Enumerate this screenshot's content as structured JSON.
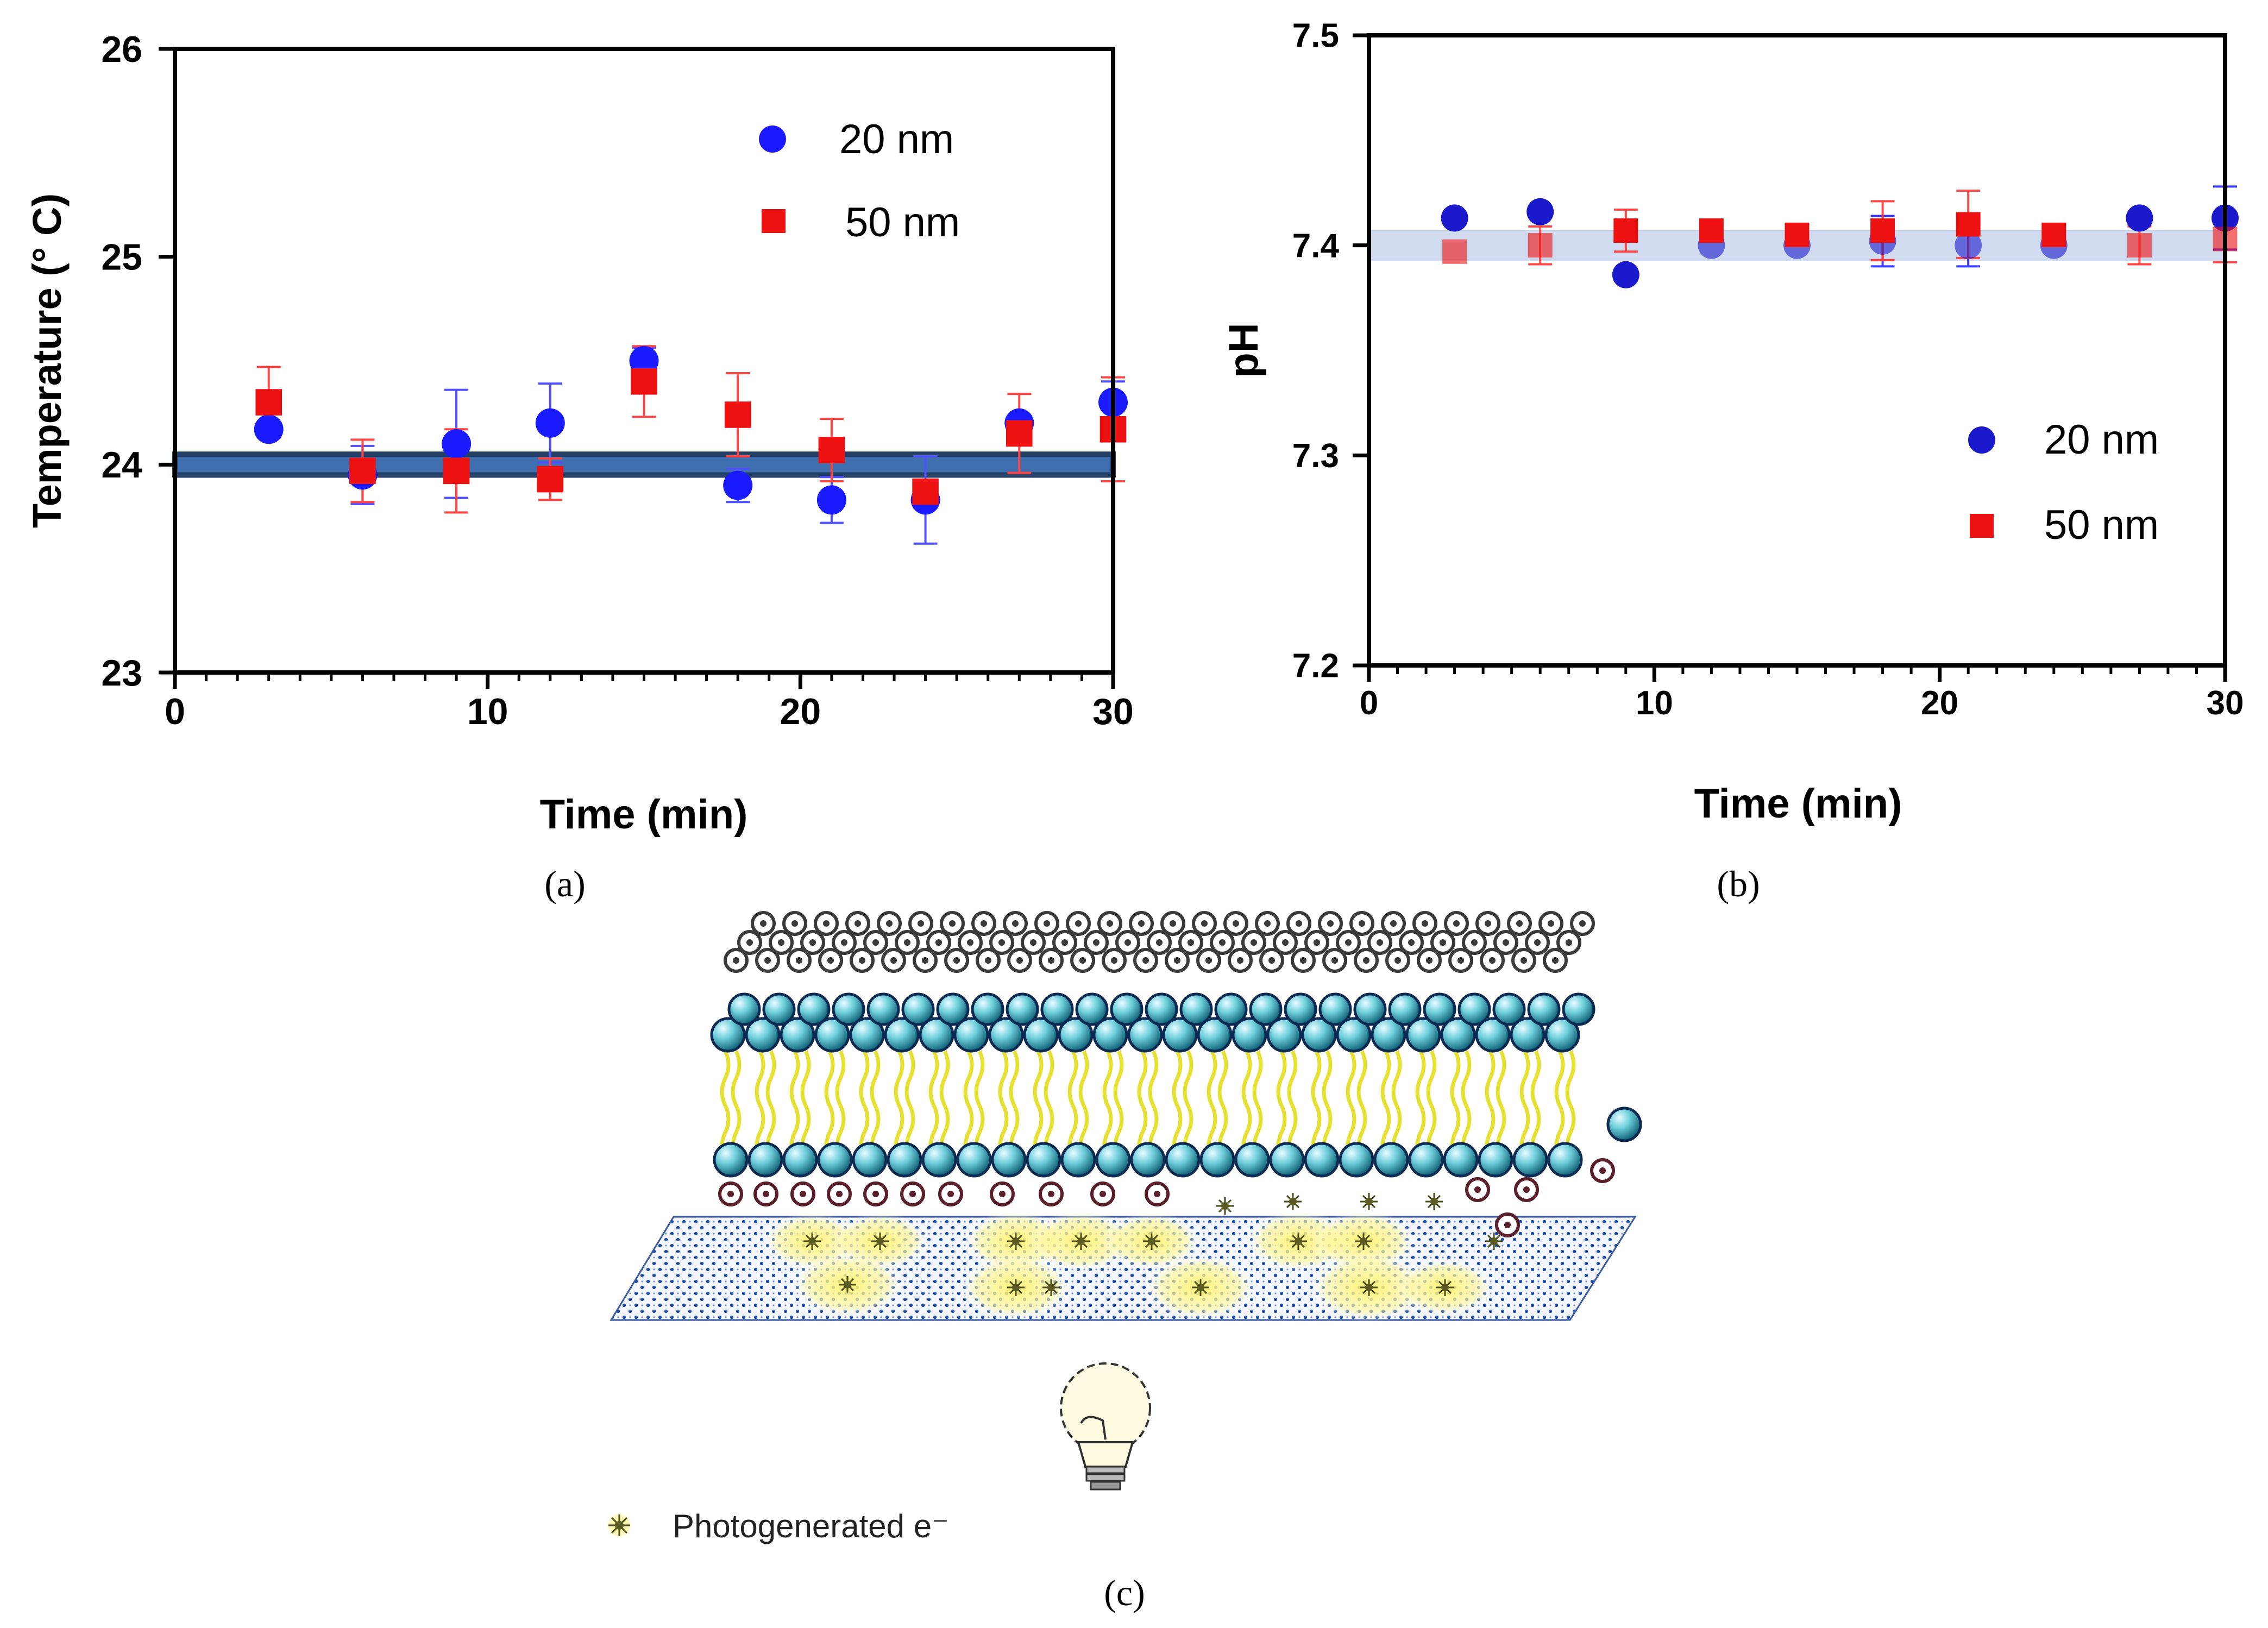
{
  "chart_data": [
    {
      "id": "a",
      "type": "scatter",
      "panel_label": "(a)",
      "xlabel": "Time (min)",
      "ylabel": "Temperature (° C)",
      "xlim": [
        0,
        30
      ],
      "ylim": [
        23,
        26
      ],
      "xticks": [
        0,
        10,
        20,
        30
      ],
      "yticks": [
        23,
        24,
        25,
        26
      ],
      "x_minor_step": 1,
      "reference_band": {
        "y": 24.0,
        "half_width": 0.05,
        "color": "#3f6fae",
        "edge": "#243f66"
      },
      "legend_position": "top-right",
      "series": [
        {
          "name": "20 nm",
          "marker": "circle",
          "color": "#1a1aff",
          "error_color": "#5050ff",
          "x": [
            3,
            6,
            9,
            12,
            15,
            18,
            21,
            24,
            27,
            30
          ],
          "y": [
            24.17,
            23.95,
            24.1,
            24.2,
            24.5,
            23.9,
            23.83,
            23.83,
            24.2,
            24.3
          ],
          "err": [
            0,
            0.14,
            0.26,
            0.19,
            0.06,
            0.08,
            0.11,
            0.21,
            0,
            0.1
          ]
        },
        {
          "name": "50 nm",
          "marker": "square",
          "color": "#ee1111",
          "error_color": "#ff4444",
          "x": [
            3,
            6,
            9,
            12,
            15,
            18,
            21,
            24,
            27,
            30
          ],
          "y": [
            24.3,
            23.97,
            23.97,
            23.93,
            24.4,
            24.24,
            24.07,
            23.87,
            24.15,
            24.17
          ],
          "err": [
            0.17,
            0.15,
            0.2,
            0.1,
            0.17,
            0.2,
            0.15,
            0.03,
            0.19,
            0.25
          ]
        }
      ]
    },
    {
      "id": "b",
      "type": "scatter",
      "panel_label": "(b)",
      "xlabel": "Time (min)",
      "ylabel": "pH",
      "xlim": [
        0,
        30
      ],
      "ylim": [
        7.2,
        7.5
      ],
      "xticks": [
        0,
        10,
        20,
        30
      ],
      "yticks": [
        7.2,
        7.3,
        7.4,
        7.5
      ],
      "x_minor_step": 1,
      "reference_band": {
        "y": 7.4,
        "half_width": 0.007,
        "color": "#c9d7ef",
        "edge": "#b3c5e6"
      },
      "legend_position": "right",
      "series": [
        {
          "name": "20 nm",
          "marker": "circle",
          "color": "#1a1acc",
          "error_color": "#3a3aff",
          "x": [
            3,
            6,
            9,
            12,
            15,
            18,
            21,
            24,
            27,
            30
          ],
          "y": [
            7.413,
            7.416,
            7.386,
            7.4,
            7.4,
            7.402,
            7.4,
            7.4,
            7.413,
            7.413
          ],
          "err": [
            0,
            0,
            0,
            0,
            0,
            0.012,
            0.01,
            0,
            0,
            0.015
          ]
        },
        {
          "name": "50 nm",
          "marker": "square",
          "color": "#ee1111",
          "error_color": "#ff4444",
          "x": [
            3,
            6,
            9,
            12,
            15,
            18,
            21,
            24,
            27,
            30
          ],
          "y": [
            7.397,
            7.4,
            7.407,
            7.407,
            7.405,
            7.407,
            7.41,
            7.405,
            7.4,
            7.403
          ],
          "err": [
            0,
            0.009,
            0.01,
            0,
            0,
            0.014,
            0.016,
            0,
            0.009,
            0.011
          ]
        }
      ]
    }
  ],
  "panel_c": {
    "panel_label": "(c)",
    "legend_text": "Photogenerated e⁻",
    "legend_icon": "photogenerated-electron-icon",
    "bulb_icon": "light-bulb-icon",
    "colors": {
      "head": "#3fb6c6",
      "head_outline": "#0d2a52",
      "tail": "#e6e030",
      "ring": "#3a3a3a",
      "ring_dark": "#5a1f2b",
      "substrate": "#1f4fa8",
      "glow": "#fff36b",
      "electron": "#5a5a22"
    }
  }
}
